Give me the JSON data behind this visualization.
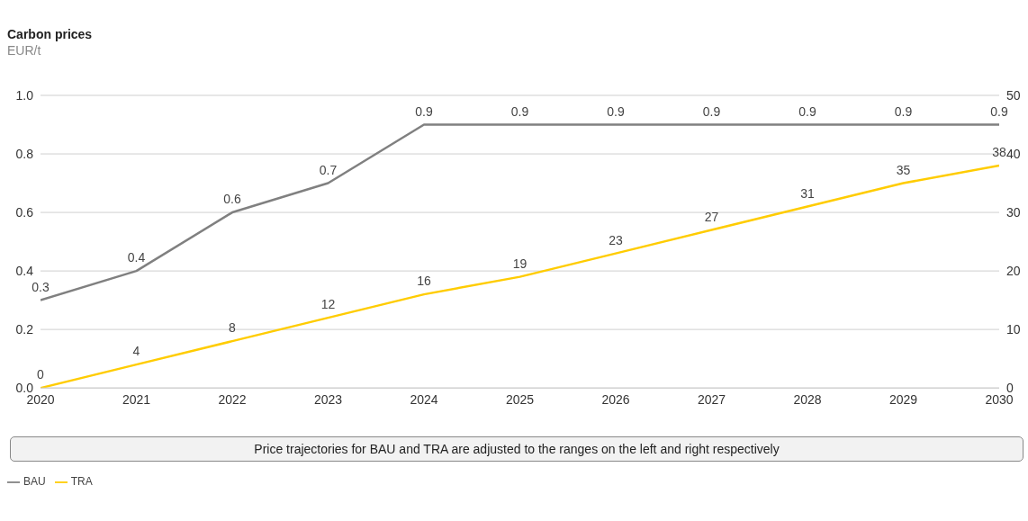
{
  "chart_data": {
    "type": "line",
    "title": "Carbon prices",
    "subtitle": "EUR/t",
    "x": [
      2020,
      2021,
      2022,
      2023,
      2024,
      2025,
      2026,
      2027,
      2028,
      2029,
      2030
    ],
    "xlim": [
      2020,
      2030
    ],
    "xticks": [
      2020,
      2021,
      2022,
      2023,
      2024,
      2025,
      2026,
      2027,
      2028,
      2029,
      2030
    ],
    "ylim": [
      0,
      1
    ],
    "yticks": [
      {
        "value": 0,
        "label": "0.0"
      },
      0.2,
      0.4,
      0.6,
      0.8,
      {
        "value": 1,
        "label": "1.0"
      }
    ],
    "y2lim": [
      0,
      50
    ],
    "y2ticks": [
      0,
      10,
      20,
      30,
      40,
      50
    ],
    "series": [
      {
        "name": "BAU",
        "color": "#808080",
        "values": [
          0.3,
          0.4,
          0.6,
          0.7,
          0.9,
          0.9,
          0.9,
          0.9,
          0.9,
          0.9,
          0.9
        ]
      },
      {
        "name": "TRA",
        "color": "#ffcc00",
        "axis": "y2",
        "values": [
          0,
          4,
          8,
          12,
          16,
          19,
          23,
          27,
          31,
          35,
          38
        ]
      }
    ],
    "data_labels": true,
    "grid": "y",
    "legend": "bottom left",
    "marker": "none",
    "line_style": "solid",
    "annotations": [
      "Price trajectories for BAU and TRA are adjusted to the ranges on the left and right respectively"
    ]
  }
}
